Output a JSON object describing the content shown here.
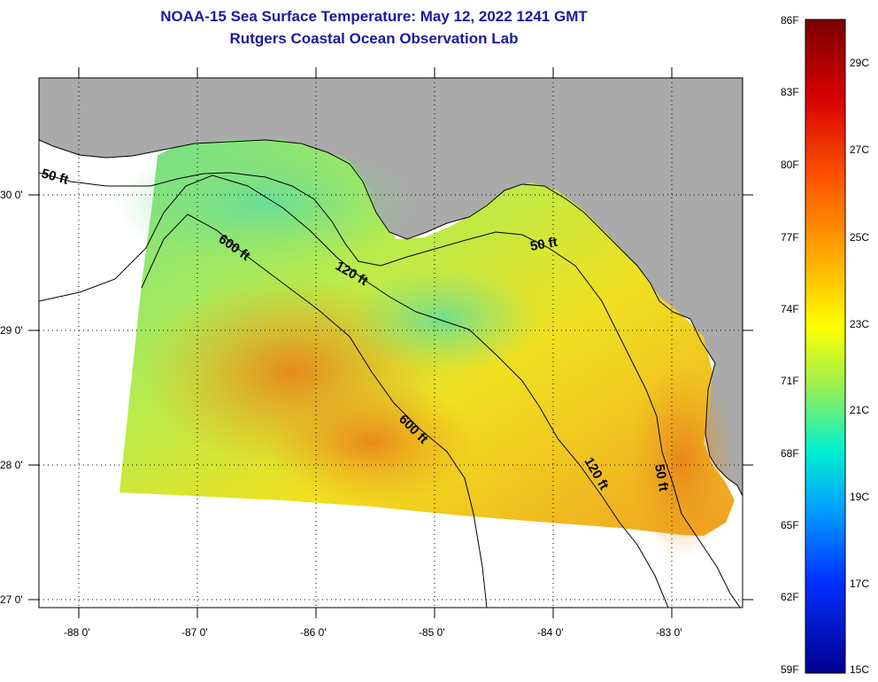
{
  "header": {
    "title": "NOAA-15 Sea Surface Temperature:  May 12, 2022 1241 GMT",
    "subtitle": "Rutgers Coastal Ocean Observation Lab"
  },
  "map": {
    "lat_labels": [
      "30 0'",
      "29 0'",
      "28 0'",
      "27 0'"
    ],
    "lon_labels": [
      "-88 0'",
      "-87 0'",
      "-86 0'",
      "-85 0'",
      "-84 0'",
      "-83 0'"
    ],
    "contours": [
      "50 ft",
      "600 ft",
      "120 ft",
      "50 ft",
      "600 ft",
      "120 ft",
      "50 ft"
    ],
    "colors": {
      "land": "#aaaaaa",
      "ocean_missing": "#ffffff",
      "grid": "#000000"
    }
  },
  "colorbar": {
    "f_labels": [
      "86F",
      "83F",
      "80F",
      "77F",
      "74F",
      "71F",
      "68F",
      "65F",
      "62F",
      "59F"
    ],
    "c_labels": [
      "29C",
      "27C",
      "25C",
      "23C",
      "21C",
      "19C",
      "17C",
      "15C"
    ],
    "colors": [
      "#800000",
      "#ff0000",
      "#ff8000",
      "#ffff00",
      "#80ff80",
      "#00ffff",
      "#0080ff",
      "#0000ff",
      "#000080"
    ]
  }
}
